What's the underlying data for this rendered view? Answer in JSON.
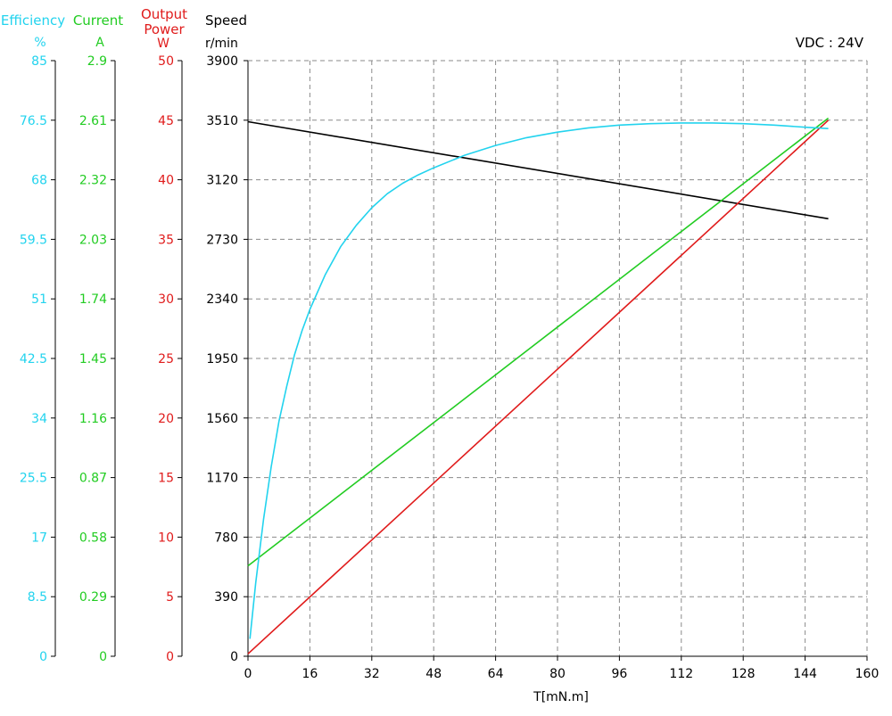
{
  "chart_data": {
    "type": "line",
    "annotation": "VDC : 24V",
    "xlabel": "T[mN.m]",
    "xlim": [
      0,
      160
    ],
    "xticks": [
      "0",
      "16",
      "32",
      "48",
      "64",
      "80",
      "96",
      "112",
      "128",
      "144",
      "160"
    ],
    "axes": {
      "efficiency": {
        "title": "Efficiency",
        "unit": "%",
        "color": "#22d3ee",
        "ticks": [
          "0",
          "8.5",
          "17",
          "25.5",
          "34",
          "42.5",
          "51",
          "59.5",
          "68",
          "76.5",
          "85"
        ],
        "range": [
          0,
          85
        ]
      },
      "current": {
        "title": "Current",
        "unit": "A",
        "color": "#22cc22",
        "ticks": [
          "0",
          "0.29",
          "0.58",
          "0.87",
          "1.16",
          "1.45",
          "1.74",
          "2.03",
          "2.32",
          "2.61",
          "2.9"
        ],
        "range": [
          0,
          2.9
        ]
      },
      "power": {
        "title_line1": "Output",
        "title_line2": "Power",
        "unit": "W",
        "color": "#e01b1b",
        "ticks": [
          "0",
          "5",
          "10",
          "15",
          "20",
          "25",
          "30",
          "35",
          "40",
          "45",
          "50"
        ],
        "range": [
          0,
          50
        ]
      },
      "speed": {
        "title": "Speed",
        "unit": "r/min",
        "color": "#000000",
        "ticks": [
          "0",
          "390",
          "780",
          "1170",
          "1560",
          "1950",
          "2340",
          "2730",
          "3120",
          "3510",
          "3900"
        ],
        "range": [
          0,
          3900
        ]
      }
    },
    "series": [
      {
        "axis": "speed",
        "color": "#000000",
        "x": [
          0,
          150
        ],
        "y": [
          3500,
          2865
        ]
      },
      {
        "axis": "current",
        "color": "#22cc22",
        "x": [
          0,
          150
        ],
        "y": [
          0.44,
          2.62
        ]
      },
      {
        "axis": "power",
        "color": "#e01b1b",
        "x": [
          0,
          150
        ],
        "y": [
          0.2,
          45.0
        ]
      },
      {
        "axis": "efficiency",
        "color": "#22d3ee",
        "x": [
          0.5,
          2,
          4,
          6,
          8,
          10,
          12,
          14,
          16,
          20,
          24,
          28,
          32,
          36,
          40,
          44,
          48,
          56,
          64,
          72,
          80,
          88,
          96,
          104,
          112,
          120,
          128,
          136,
          144,
          150
        ],
        "y": [
          2.5,
          10.5,
          19.5,
          27.0,
          33.5,
          38.5,
          43.0,
          46.5,
          49.5,
          54.5,
          58.5,
          61.5,
          64.0,
          66.0,
          67.5,
          68.7,
          69.7,
          71.5,
          72.9,
          74.0,
          74.8,
          75.4,
          75.8,
          76.0,
          76.1,
          76.1,
          76.0,
          75.8,
          75.5,
          75.3
        ]
      }
    ]
  }
}
